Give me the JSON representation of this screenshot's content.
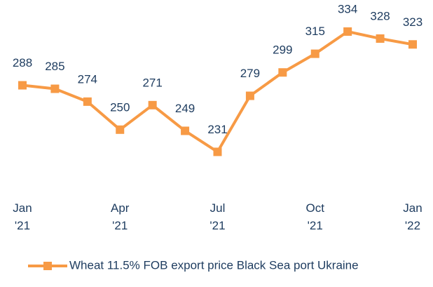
{
  "chart_data": {
    "type": "line",
    "categories": [
      "Jan '21",
      null,
      null,
      "Apr '21",
      null,
      null,
      "Jul '21",
      null,
      null,
      "Oct '21",
      null,
      null,
      "Jan '22"
    ],
    "series": [
      {
        "name": "Wheat 11.5% FOB export price Black Sea port Ukraine",
        "color": "#f79a45",
        "values": [
          288,
          285,
          274,
          250,
          271,
          249,
          231,
          279,
          299,
          315,
          334,
          328,
          323
        ]
      }
    ],
    "ylim": [
      200,
      340
    ],
    "legend": "bottom"
  }
}
